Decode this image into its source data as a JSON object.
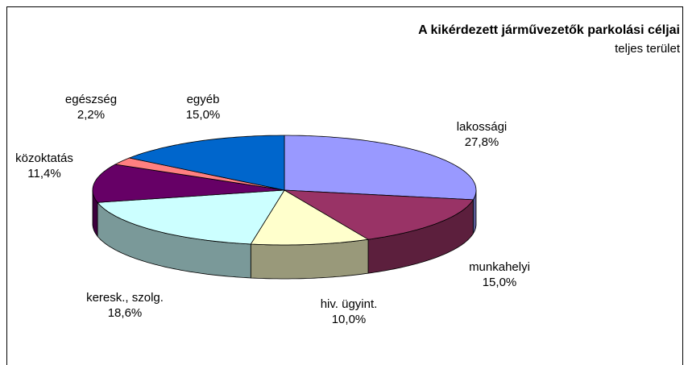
{
  "chart_data": {
    "type": "pie3d",
    "title": "A kikérdezett járművezetők parkolási céljai",
    "subtitle": "teljes terület",
    "categories": [
      "lakossági",
      "munkahelyi",
      "hiv. ügyint.",
      "keresk., szolg.",
      "közoktatás",
      "egészség",
      "egyéb"
    ],
    "values": [
      27.8,
      15.0,
      10.0,
      18.6,
      11.4,
      2.2,
      15.0
    ],
    "value_labels": [
      "27,8%",
      "15,0%",
      "10,0%",
      "18,6%",
      "11,4%",
      "2,2%",
      "15,0%"
    ],
    "colors": [
      "#9999ff",
      "#993366",
      "#ffffcc",
      "#ccffff",
      "#660066",
      "#ff8080",
      "#0066cc"
    ]
  }
}
